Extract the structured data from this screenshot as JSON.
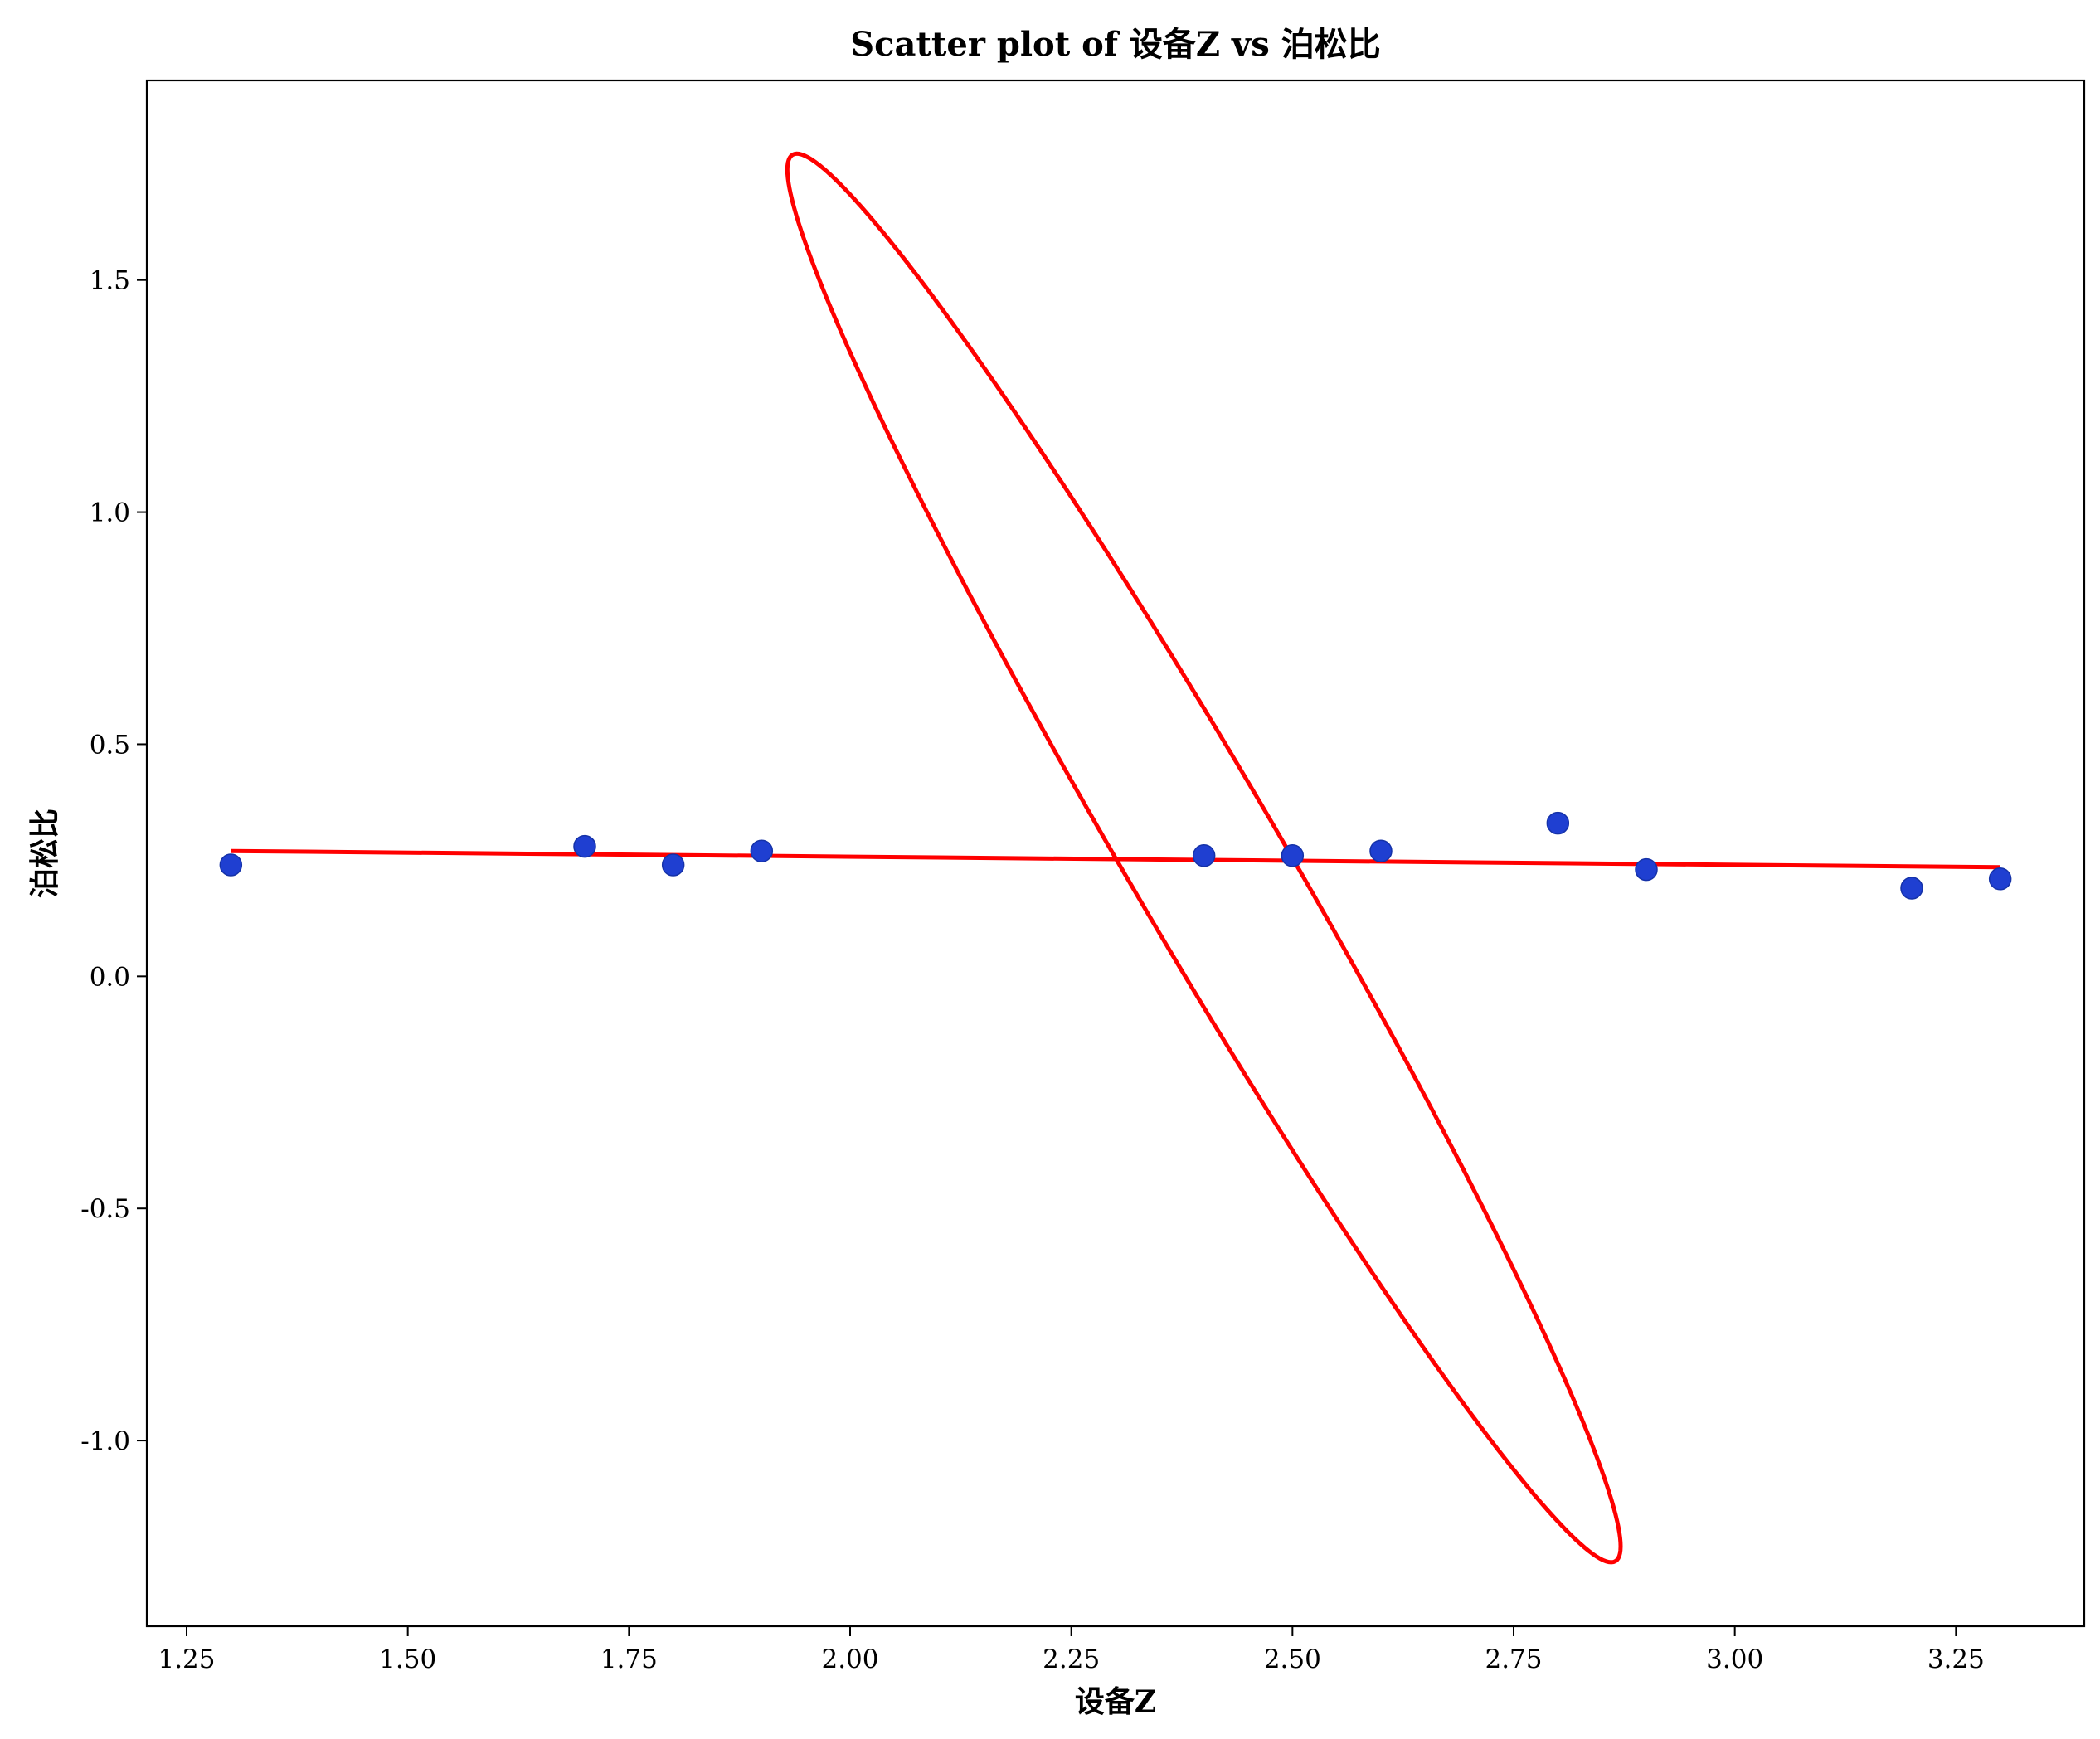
{
  "chart_data": {
    "type": "scatter",
    "title": "Scatter plot of 设备Z vs 泊松比",
    "xlabel": "设备Z",
    "ylabel": "泊松比",
    "xlim": [
      1.205,
      3.395
    ],
    "ylim": [
      -1.4,
      1.93
    ],
    "x_ticks": [
      1.25,
      1.5,
      1.75,
      2.0,
      2.25,
      2.5,
      2.75,
      3.0,
      3.25
    ],
    "x_tick_labels": [
      "1.25",
      "1.50",
      "1.75",
      "2.00",
      "2.25",
      "2.50",
      "2.75",
      "3.00",
      "3.25"
    ],
    "y_ticks": [
      -1.0,
      -0.5,
      0.0,
      0.5,
      1.0,
      1.5
    ],
    "y_tick_labels": [
      "-1.0",
      "-0.5",
      "0.0",
      "0.5",
      "1.0",
      "1.5"
    ],
    "grid": false,
    "series": [
      {
        "kind": "scatter",
        "color": "#1f3fd1",
        "points": [
          {
            "x": 1.3,
            "y": 0.24
          },
          {
            "x": 1.7,
            "y": 0.28
          },
          {
            "x": 1.8,
            "y": 0.24
          },
          {
            "x": 1.9,
            "y": 0.27
          },
          {
            "x": 2.4,
            "y": 0.26
          },
          {
            "x": 2.5,
            "y": 0.26
          },
          {
            "x": 2.6,
            "y": 0.27
          },
          {
            "x": 2.8,
            "y": 0.33
          },
          {
            "x": 2.9,
            "y": 0.23
          },
          {
            "x": 3.2,
            "y": 0.19
          },
          {
            "x": 3.3,
            "y": 0.21
          }
        ]
      },
      {
        "kind": "line",
        "color": "#ff0000",
        "points": [
          {
            "x": 1.3,
            "y": 0.27
          },
          {
            "x": 3.3,
            "y": 0.235
          }
        ]
      },
      {
        "kind": "ellipse",
        "color": "#ff0000",
        "center": {
          "x": 2.4,
          "y": 0.255
        },
        "extremes": [
          {
            "x": 1.935,
            "y": 1.77
          },
          {
            "x": 2.865,
            "y": -1.26
          }
        ],
        "crossings": [
          {
            "x": 2.3,
            "y": 0.255
          },
          {
            "x": 2.5,
            "y": 0.255
          }
        ]
      }
    ]
  }
}
